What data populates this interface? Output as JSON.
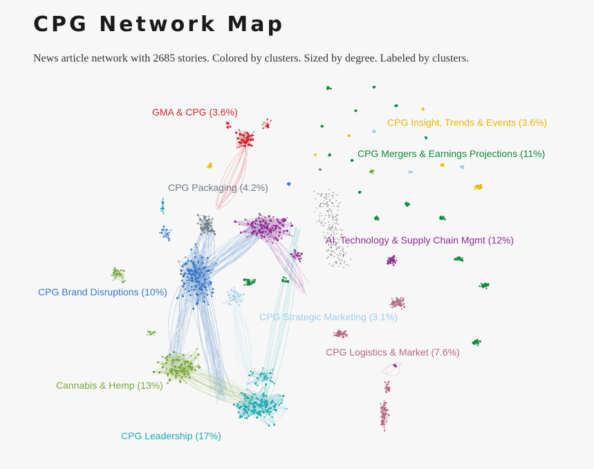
{
  "header": {
    "title": "CPG Network Map",
    "subtitle": "News article network with 2685 stories. Colored by clusters. Sized by degree. Labeled by clusters."
  },
  "clusters": [
    {
      "id": "gma",
      "label": "GMA & CPG (3.6%)",
      "color": "#d0262b"
    },
    {
      "id": "insight",
      "label": "CPG Insight, Trends & Events (3.6%)",
      "color": "#e6b800"
    },
    {
      "id": "mergers",
      "label": "CPG Mergers & Earnings Projections  (11%)",
      "color": "#0f8a3c"
    },
    {
      "id": "packaging",
      "label": "CPG Packaging  (4.2%)",
      "color": "#707a84"
    },
    {
      "id": "ai",
      "label": "AI, Technology & Supply Chain Mgmt  (12%)",
      "color": "#8e2d91"
    },
    {
      "id": "brand",
      "label": "CPG Brand Disruptions (10%)",
      "color": "#3a78c4"
    },
    {
      "id": "strategic",
      "label": "CPG Strategic Marketing  (3.1%)",
      "color": "#9fd0e6"
    },
    {
      "id": "logistics",
      "label": "CPG Logistics & Market (7.6%)",
      "color": "#b5697f"
    },
    {
      "id": "cannabis",
      "label": "Cannabis & Hemp  (13%)",
      "color": "#7aa83b"
    },
    {
      "id": "leadership",
      "label": "CPG Leadership  (17%)",
      "color": "#22a8b0"
    }
  ]
}
